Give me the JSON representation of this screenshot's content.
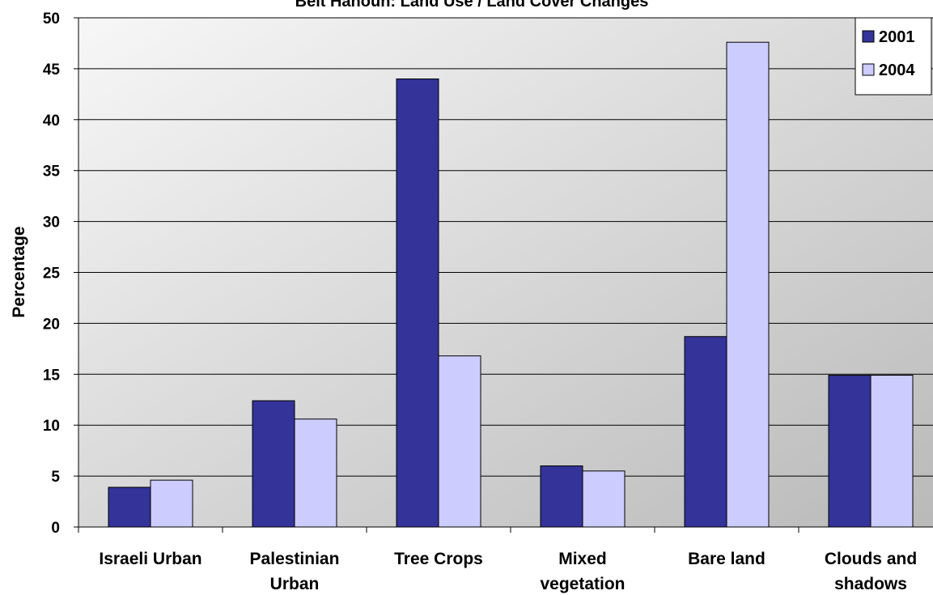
{
  "chart_data": {
    "type": "bar",
    "title": "Beit Hanoun: Land Use / Land Cover Changes",
    "xlabel": "",
    "ylabel": "Percentage",
    "ylim": [
      0,
      50
    ],
    "yticks": [
      0,
      5,
      10,
      15,
      20,
      25,
      30,
      35,
      40,
      45,
      50
    ],
    "categories": [
      [
        "Israeli Urban"
      ],
      [
        "Palestinian",
        "Urban"
      ],
      [
        "Tree Crops"
      ],
      [
        "Mixed",
        "vegetation"
      ],
      [
        "Bare land"
      ],
      [
        "Clouds and",
        "shadows"
      ]
    ],
    "series": [
      {
        "name": "2001",
        "color": "#333399",
        "values": [
          3.9,
          12.4,
          44.0,
          6.0,
          18.7,
          14.9
        ]
      },
      {
        "name": "2004",
        "color": "#ccccff",
        "values": [
          4.6,
          10.6,
          16.8,
          5.5,
          47.6,
          14.9
        ]
      }
    ],
    "grid": true,
    "legend": "top-right"
  }
}
